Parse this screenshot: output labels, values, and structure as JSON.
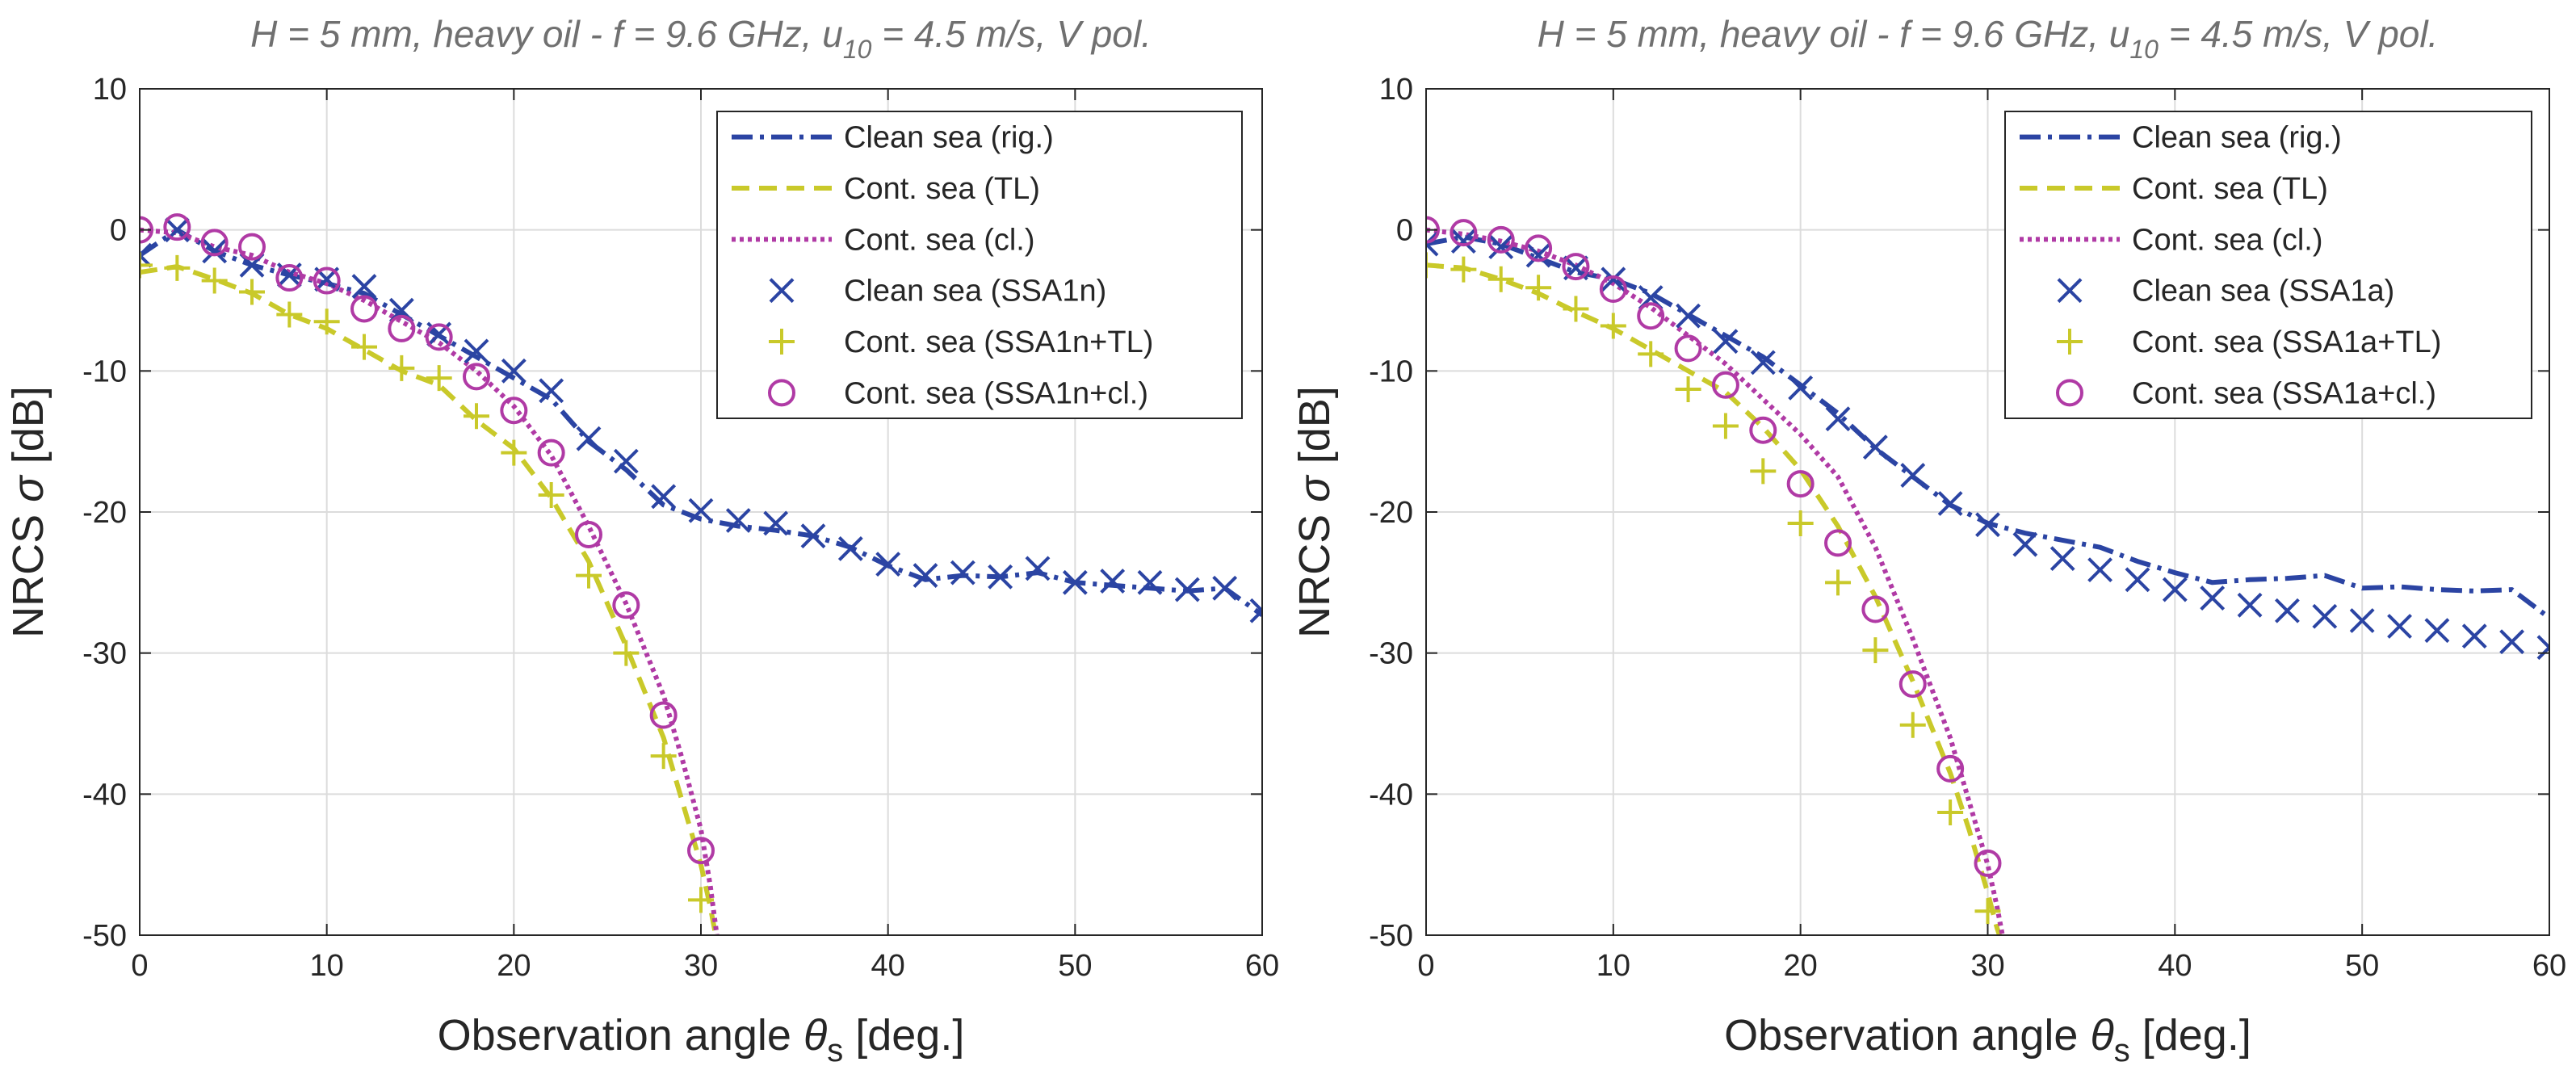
{
  "chart_data": [
    {
      "type": "line",
      "title_parts": {
        "main": "H = 5 mm, heavy oil  -  f = 9.6 GHz, u",
        "sub": "10",
        "tail": " = 4.5 m/s, V pol."
      },
      "xlabel_parts": {
        "pre": "Observation angle ",
        "sym": "θ",
        "sub": "s",
        "post": " [deg.]"
      },
      "ylabel_parts": {
        "pre": "NRCS ",
        "sym": "σ",
        "post": " [dB]"
      },
      "xlim": [
        0,
        60
      ],
      "ylim": [
        -50,
        10
      ],
      "xticks": [
        0,
        10,
        20,
        30,
        40,
        50,
        60
      ],
      "xtick_labels": [
        "0",
        "10",
        "20",
        "30",
        "40",
        "50",
        "60"
      ],
      "yticks": [
        10,
        0,
        -10,
        -20,
        -30,
        -40,
        -50
      ],
      "ytick_labels": [
        "10",
        "0",
        "-10",
        "-20",
        "-30",
        "-40",
        "-50"
      ],
      "grid": true,
      "legend_position": "top-right",
      "series": [
        {
          "name": "Clean sea (rig.)",
          "kind": "line",
          "style": "dashdot",
          "color": "#2b44a3",
          "x": [
            0,
            2,
            4,
            6,
            8,
            10,
            12,
            14,
            16,
            18,
            20,
            22,
            24,
            26,
            28,
            30,
            32,
            34,
            36,
            38,
            40,
            42,
            44,
            46,
            48,
            50,
            52,
            54,
            56,
            58,
            60
          ],
          "y": [
            -1.8,
            0,
            -1.5,
            -2.5,
            -3.2,
            -3.8,
            -4.5,
            -6,
            -7.5,
            -9,
            -10.5,
            -12,
            -15,
            -17,
            -19.5,
            -20.5,
            -21,
            -21.3,
            -21.7,
            -22.5,
            -23.8,
            -24.8,
            -24.5,
            -24.6,
            -24.3,
            -25,
            -25.2,
            -25.4,
            -25.6,
            -25.4,
            -27.3
          ]
        },
        {
          "name": "Cont. sea (TL)",
          "kind": "line",
          "style": "dashed",
          "color": "#c9c92a",
          "x": [
            0,
            2,
            4,
            6,
            8,
            10,
            12,
            14,
            16,
            18,
            20,
            22,
            24,
            26,
            28,
            29,
            30,
            30.5,
            31
          ],
          "y": [
            -3,
            -2.6,
            -3.5,
            -4.5,
            -6,
            -7,
            -8.5,
            -10,
            -11,
            -13.5,
            -15.5,
            -19,
            -23.5,
            -29.5,
            -36,
            -40.5,
            -45,
            -48,
            -51.5
          ]
        },
        {
          "name": "Cont. sea (cl.)",
          "kind": "line",
          "style": "dotted",
          "color": "#b03aa5",
          "x": [
            0,
            2,
            4,
            6,
            8,
            10,
            12,
            14,
            16,
            18,
            20,
            22,
            24,
            26,
            28,
            29,
            30,
            30.5,
            31
          ],
          "y": [
            0,
            -0.2,
            -1.2,
            -1.8,
            -3,
            -3.8,
            -5,
            -6.5,
            -8,
            -10,
            -12.5,
            -16,
            -21,
            -26.5,
            -33,
            -37.5,
            -42.5,
            -46.5,
            -51.5
          ]
        },
        {
          "name": "Clean sea (SSA1n)",
          "kind": "marker",
          "marker": "x",
          "color": "#2b44a3",
          "x": [
            0,
            2,
            4,
            6,
            8,
            10,
            12,
            14,
            16,
            18,
            20,
            22,
            24,
            26,
            28,
            30,
            32,
            34,
            36,
            38,
            40,
            42,
            44,
            46,
            48,
            50,
            52,
            54,
            56,
            58,
            60
          ],
          "y": [
            -1.8,
            0,
            -1.5,
            -2.5,
            -3.2,
            -3.5,
            -4,
            -5.7,
            -7.4,
            -8.6,
            -10,
            -11.4,
            -14.8,
            -16.4,
            -18.9,
            -19.9,
            -20.6,
            -20.8,
            -21.7,
            -22.6,
            -23.7,
            -24.5,
            -24.3,
            -24.6,
            -24,
            -25,
            -24.9,
            -25,
            -25.5,
            -25.4,
            -27
          ]
        },
        {
          "name": "Cont. sea (SSA1n+TL)",
          "kind": "marker",
          "marker": "plus",
          "color": "#c9c92a",
          "x": [
            0,
            2,
            4,
            6,
            8,
            10,
            12,
            14,
            16,
            18,
            20,
            22,
            24,
            26,
            28,
            30
          ],
          "y": [
            -2.5,
            -2.7,
            -3.6,
            -4.4,
            -6,
            -6.5,
            -8.3,
            -9.8,
            -10.5,
            -13.2,
            -15.8,
            -18.8,
            -24.5,
            -30,
            -37.3,
            -47.5
          ]
        },
        {
          "name": "Cont. sea (SSA1n+cl.)",
          "kind": "marker",
          "marker": "circle",
          "color": "#b03aa5",
          "x": [
            0,
            2,
            4,
            6,
            8,
            10,
            12,
            14,
            16,
            18,
            20,
            22,
            24,
            26,
            28,
            30
          ],
          "y": [
            0,
            0.2,
            -0.9,
            -1.2,
            -3.4,
            -3.6,
            -5.6,
            -7,
            -7.6,
            -10.4,
            -12.8,
            -15.8,
            -21.6,
            -26.6,
            -34.4,
            -44
          ]
        }
      ]
    },
    {
      "type": "line",
      "title_parts": {
        "main": "H = 5 mm, heavy oil  -  f = 9.6 GHz, u",
        "sub": "10",
        "tail": " = 4.5 m/s, V pol."
      },
      "xlabel_parts": {
        "pre": "Observation angle ",
        "sym": "θ",
        "sub": "s",
        "post": " [deg.]"
      },
      "ylabel_parts": {
        "pre": "NRCS ",
        "sym": "σ",
        "post": " [dB]"
      },
      "xlim": [
        0,
        60
      ],
      "ylim": [
        -50,
        10
      ],
      "xticks": [
        0,
        10,
        20,
        30,
        40,
        50,
        60
      ],
      "xtick_labels": [
        "0",
        "10",
        "20",
        "30",
        "40",
        "50",
        "60"
      ],
      "yticks": [
        10,
        0,
        -10,
        -20,
        -30,
        -40,
        -50
      ],
      "ytick_labels": [
        "10",
        "0",
        "-10",
        "-20",
        "-30",
        "-40",
        "-50"
      ],
      "grid": true,
      "legend_position": "top-right",
      "series": [
        {
          "name": "Clean sea (rig.)",
          "kind": "line",
          "style": "dashdot",
          "color": "#2b44a3",
          "x": [
            0,
            2,
            4,
            6,
            8,
            10,
            12,
            14,
            16,
            18,
            20,
            22,
            24,
            26,
            28,
            30,
            32,
            34,
            36,
            38,
            40,
            42,
            44,
            46,
            48,
            50,
            52,
            54,
            56,
            58,
            60
          ],
          "y": [
            -1,
            -0.5,
            -1,
            -2,
            -3,
            -3.5,
            -4.5,
            -6,
            -7.5,
            -9,
            -11,
            -13,
            -15.5,
            -17.5,
            -19.5,
            -20.8,
            -21.5,
            -22,
            -22.5,
            -23.5,
            -24.3,
            -25,
            -24.8,
            -24.7,
            -24.5,
            -25.4,
            -25.3,
            -25.5,
            -25.6,
            -25.5,
            -27.5
          ]
        },
        {
          "name": "Cont. sea (TL)",
          "kind": "line",
          "style": "dashed",
          "color": "#c9c92a",
          "x": [
            0,
            2,
            4,
            6,
            8,
            10,
            12,
            14,
            16,
            18,
            20,
            22,
            24,
            26,
            28,
            29,
            30,
            30.5,
            31
          ],
          "y": [
            -2.5,
            -2.7,
            -3.5,
            -4.5,
            -5.8,
            -7,
            -8.5,
            -10,
            -11.5,
            -14,
            -17,
            -21,
            -26,
            -32,
            -38.5,
            -42.5,
            -47,
            -49.5,
            -51.5
          ]
        },
        {
          "name": "Cont. sea (cl.)",
          "kind": "line",
          "style": "dotted",
          "color": "#b03aa5",
          "x": [
            0,
            2,
            4,
            6,
            8,
            10,
            12,
            14,
            16,
            18,
            20,
            22,
            24,
            26,
            28,
            29,
            30,
            30.5,
            31
          ],
          "y": [
            0,
            -0.3,
            -0.8,
            -1.5,
            -2.5,
            -3.8,
            -5.5,
            -7.5,
            -9.5,
            -12,
            -14.5,
            -17.5,
            -22.5,
            -29,
            -36,
            -40.5,
            -45,
            -48,
            -51.5
          ]
        },
        {
          "name": "Clean sea (SSA1a)",
          "kind": "marker",
          "marker": "x",
          "color": "#2b44a3",
          "x": [
            0,
            2,
            4,
            6,
            8,
            10,
            12,
            14,
            16,
            18,
            20,
            22,
            24,
            26,
            28,
            30,
            32,
            34,
            36,
            38,
            40,
            42,
            44,
            46,
            48,
            50,
            52,
            54,
            56,
            58,
            60
          ],
          "y": [
            -1,
            -0.8,
            -1.2,
            -1.8,
            -2.7,
            -3.5,
            -4.8,
            -6.1,
            -7.9,
            -9.4,
            -11.2,
            -13.4,
            -15.4,
            -17.4,
            -19.4,
            -20.9,
            -22.3,
            -23.3,
            -24.1,
            -24.8,
            -25.5,
            -26.1,
            -26.6,
            -27,
            -27.4,
            -27.7,
            -28.1,
            -28.4,
            -28.8,
            -29.2,
            -29.6
          ]
        },
        {
          "name": "Cont. sea (SSA1a+TL)",
          "kind": "marker",
          "marker": "plus",
          "color": "#c9c92a",
          "x": [
            0,
            2,
            4,
            6,
            8,
            10,
            12,
            14,
            16,
            18,
            20,
            22,
            24,
            26,
            28,
            30
          ],
          "y": [
            -2.5,
            -2.8,
            -3.5,
            -4.1,
            -5.6,
            -6.8,
            -8.8,
            -11.3,
            -13.9,
            -17.1,
            -20.8,
            -25,
            -29.8,
            -35.1,
            -41.3,
            -48.3
          ]
        },
        {
          "name": "Cont. sea (SSA1a+cl.)",
          "kind": "marker",
          "marker": "circle",
          "color": "#b03aa5",
          "x": [
            0,
            2,
            4,
            6,
            8,
            10,
            12,
            14,
            16,
            18,
            20,
            22,
            24,
            26,
            28,
            30
          ],
          "y": [
            0,
            -0.2,
            -0.7,
            -1.3,
            -2.6,
            -4.2,
            -6.1,
            -8.4,
            -11,
            -14.2,
            -18,
            -22.2,
            -26.9,
            -32.2,
            -38.2,
            -44.9
          ]
        }
      ]
    }
  ]
}
